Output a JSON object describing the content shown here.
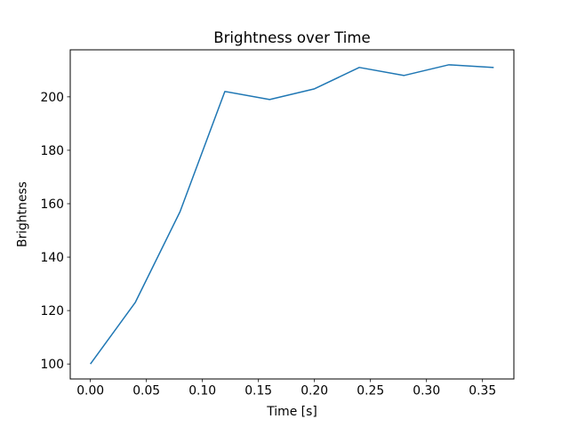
{
  "figure": {
    "background": "#ffffff"
  },
  "chart_data": {
    "type": "line",
    "title": "Brightness over Time",
    "xlabel": "Time [s]",
    "ylabel": "Brightness",
    "x": [
      0.0,
      0.04,
      0.08,
      0.12,
      0.16,
      0.2,
      0.24,
      0.28,
      0.32,
      0.36
    ],
    "series": [
      {
        "name": "brightness",
        "values": [
          100,
          123,
          157,
          202,
          199,
          203,
          211,
          208,
          212,
          211
        ]
      }
    ],
    "line_color": "#1f77b4",
    "line_width": 1.5,
    "axis_color": "#000000",
    "text_color": "#000000",
    "xlim": [
      -0.018,
      0.378
    ],
    "ylim": [
      94.4,
      217.6
    ],
    "xticks": {
      "values": [
        0.0,
        0.05,
        0.1,
        0.15,
        0.2,
        0.25,
        0.3,
        0.35
      ],
      "labels": [
        "0.00",
        "0.05",
        "0.10",
        "0.15",
        "0.20",
        "0.25",
        "0.30",
        "0.35"
      ]
    },
    "yticks": {
      "values": [
        100,
        120,
        140,
        160,
        180,
        200
      ],
      "labels": [
        "100",
        "120",
        "140",
        "160",
        "180",
        "200"
      ]
    },
    "grid": false,
    "legend": "none"
  }
}
